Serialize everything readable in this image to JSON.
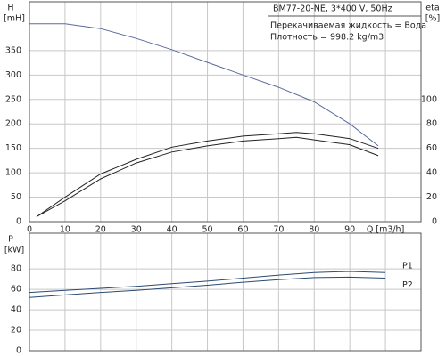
{
  "chart_data": [
    {
      "type": "line",
      "annotations": [
        "BM77-20-NE, 3*400 V, 50Hz",
        "Перекачиваемая жидкость = Вода",
        "Плотность = 998.2 kg/m3"
      ],
      "y_label": "H",
      "y_unit": "[mH]",
      "y2_label": "eta",
      "y2_unit": "[%]",
      "xlim": [
        0,
        110
      ],
      "xticks": [
        0,
        10,
        20,
        30,
        40,
        50,
        60,
        70,
        80,
        90,
        {
          "value": 100,
          "label": "Q [m3/h]"
        }
      ],
      "ylim": [
        0,
        450
      ],
      "yticks": [
        0,
        50,
        100,
        150,
        200,
        250,
        300,
        350
      ],
      "y2lim": [
        0,
        180
      ],
      "y2ticks": [
        0,
        20,
        40,
        60,
        80,
        100
      ],
      "grid": true,
      "series": [
        {
          "color": "#5b6b9e",
          "x": [
            0,
            10,
            20,
            30,
            40,
            50,
            60,
            70,
            80,
            90,
            98
          ],
          "values": [
            405,
            405,
            395,
            375,
            352,
            326,
            300,
            275,
            245,
            200,
            155
          ]
        },
        {
          "color": "#222222",
          "axis": "y2",
          "x": [
            2,
            10,
            20,
            30,
            40,
            50,
            60,
            70,
            75,
            80,
            90,
            98
          ],
          "values": [
            4,
            20,
            39,
            51,
            61,
            66,
            70,
            72,
            73,
            72,
            68,
            60
          ]
        },
        {
          "color": "#222222",
          "axis": "y2",
          "x": [
            2,
            10,
            20,
            30,
            40,
            50,
            60,
            70,
            75,
            80,
            90,
            98
          ],
          "values": [
            4,
            17,
            35,
            48,
            57,
            62,
            66,
            68,
            69,
            67,
            63,
            54
          ]
        }
      ]
    },
    {
      "type": "line",
      "y_label": "P",
      "y_unit": "[kW]",
      "xlim": [
        0,
        110
      ],
      "ylim": [
        0,
        115
      ],
      "yticks": [
        0,
        20,
        40,
        60,
        80
      ],
      "grid": true,
      "series": [
        {
          "name": "P1",
          "color": "#2c4a72",
          "x": [
            0,
            10,
            20,
            30,
            40,
            50,
            60,
            70,
            80,
            90,
            100
          ],
          "values": [
            57,
            59,
            61,
            63,
            65.5,
            68,
            71,
            74,
            76.5,
            77.5,
            76.5
          ]
        },
        {
          "name": "P2",
          "color": "#2c4a72",
          "x": [
            0,
            10,
            20,
            30,
            40,
            50,
            60,
            70,
            80,
            90,
            100
          ],
          "values": [
            52,
            54.5,
            57,
            59,
            61.5,
            64,
            67,
            69.5,
            71.5,
            72,
            71
          ]
        }
      ]
    }
  ]
}
